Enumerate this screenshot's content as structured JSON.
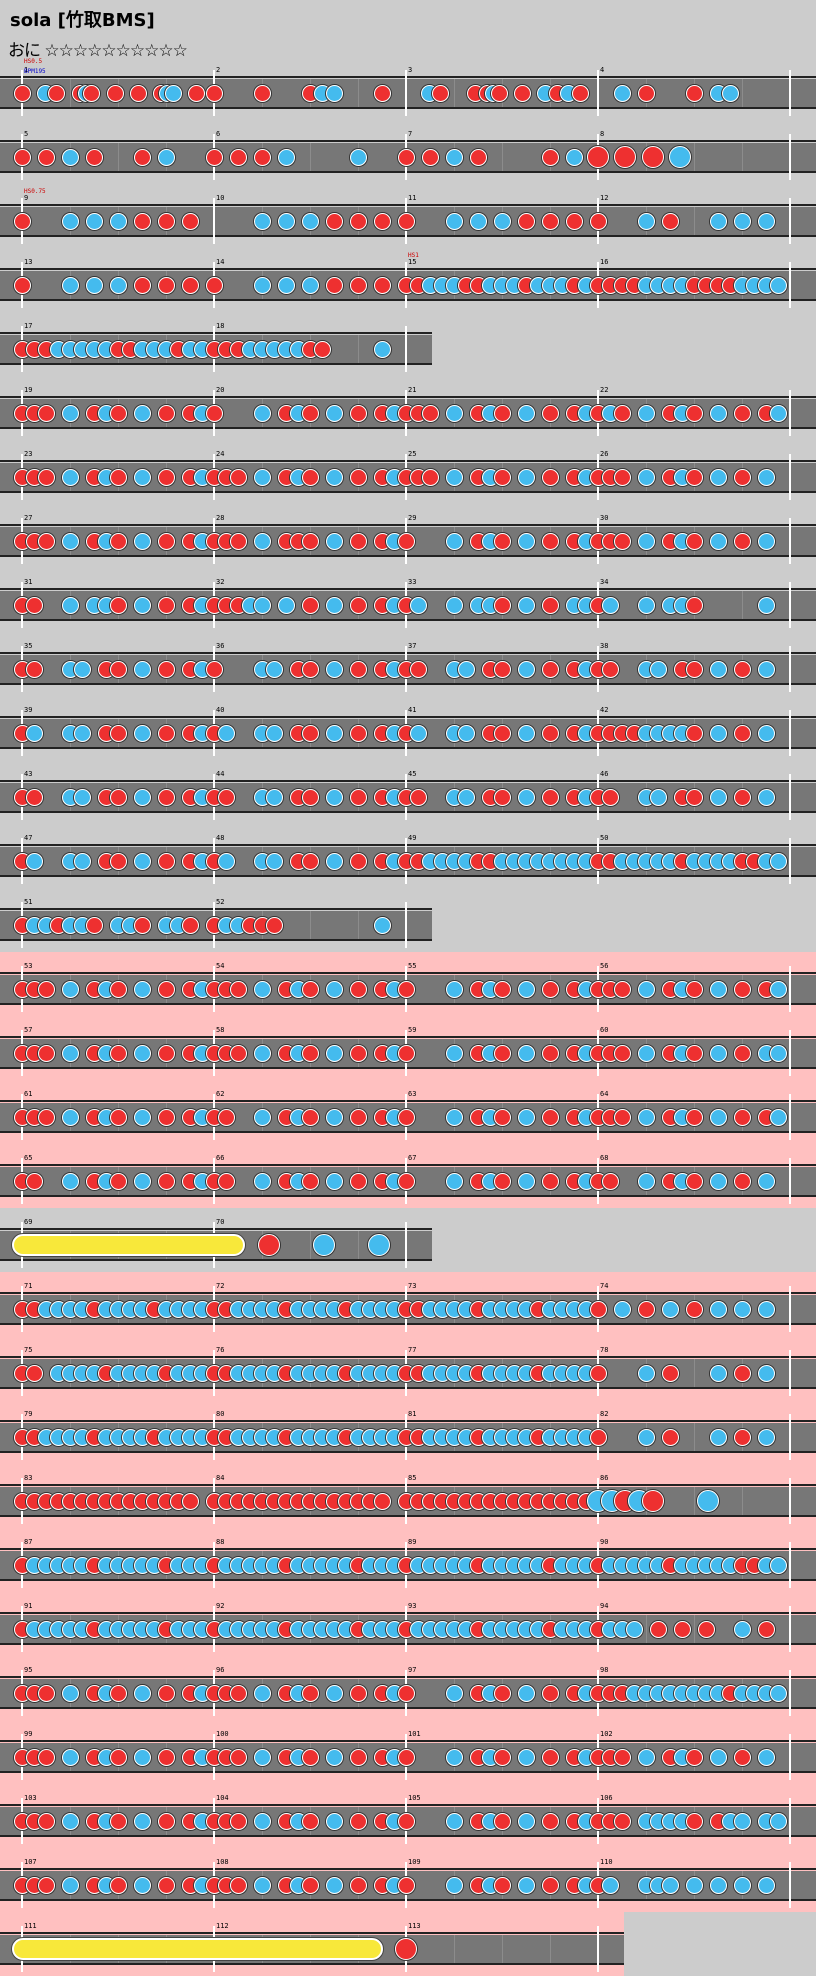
{
  "chart": {
    "title": "sola [竹取BMS]",
    "difficulty": "おに ☆☆☆☆☆☆☆☆☆☆",
    "colors": {
      "don": "#ee3030",
      "ka": "#44bbee",
      "roll": "#f8e83a",
      "gogo": "#ffc0c0",
      "lane": "#777777",
      "background": "#cccccc"
    },
    "annotations": [
      {
        "row": 0,
        "text": "HS0.5",
        "color": "#cc0000"
      },
      {
        "row": 0,
        "text": "BPM195",
        "color": "#0000cc"
      },
      {
        "row": 2,
        "text": "HS0.75",
        "color": "#cc0000"
      },
      {
        "row": 3,
        "measure_index": 2,
        "text": "HS1",
        "color": "#cc0000"
      }
    ]
  },
  "rows": [
    {
      "measures": [
        {
          "n": "1",
          "notes": "d...k.d...dkd...|d...d...dkk...d.|"
        },
        {
          "n": "2",
          "notes": "d...d...dkk...d.|"
        },
        {
          "n": "3",
          "notes": "....k.d.....d.dk|d...d...k.d.k.d.|"
        },
        {
          "n": "4",
          "notes": "..k.d...d.kk....|"
        }
      ]
    },
    {
      "measures": [
        {
          "n": "5",
          "notes": "d.d.k.d...d.k...|"
        },
        {
          "n": "6",
          "notes": "d.d.d.k.....k...|"
        },
        {
          "n": "7",
          "notes": "d.d.k.d.....d.k.|"
        },
        {
          "n": "8",
          "notes": "L:d.d.d.k.......|"
        }
      ]
    },
    {
      "measures": [
        {
          "n": "9",
          "notes": "d...k.k.k.d.d.d.|"
        },
        {
          "n": "10",
          "notes": "....k.k.k.d.d.d.|"
        },
        {
          "n": "11",
          "notes": "d...k.k.k.d.d.d.|"
        },
        {
          "n": "12",
          "notes": "d...k.d...k.k.k.|"
        }
      ]
    },
    {
      "measures": [
        {
          "n": "13",
          "notes": "d...k.k.k.d.d.d.|"
        },
        {
          "n": "14",
          "notes": "d...k.k.k.d.d.d.|"
        },
        {
          "n": "15",
          "notes": "ddkkkddkkkdkkkdk|"
        },
        {
          "n": "16",
          "notes": "ddddkkkkddddkkkk|"
        }
      ]
    },
    {
      "short": true,
      "measures": [
        {
          "n": "17",
          "notes": "dddkkkkkddkkkdkk|"
        },
        {
          "n": "18",
          "notes": "dddkkkkkdd..L:k.|"
        }
      ]
    },
    {
      "measures": [
        {
          "n": "19",
          "notes": "ddd.k.dkd.k.d.dk|"
        },
        {
          "n": "20",
          "notes": "d...k.dkd.k.d.dk|"
        },
        {
          "n": "21",
          "notes": "ddd.k.dkd.k.d.dk|"
        },
        {
          "n": "22",
          "notes": "dkd.k.dkd.k.d.dk|"
        }
      ]
    },
    {
      "measures": [
        {
          "n": "23",
          "notes": "ddd.k.dkd.k.d.dk|"
        },
        {
          "n": "24",
          "notes": "ddd.k.dkd.k.d.dk|"
        },
        {
          "n": "25",
          "notes": "ddd.k.dkd.k.d.dk|"
        },
        {
          "n": "26",
          "notes": "ddd.k.dkd.k.d.k.|"
        }
      ]
    },
    {
      "measures": [
        {
          "n": "27",
          "notes": "ddd.k.dkd.k.d.dk|"
        },
        {
          "n": "28",
          "notes": "ddd.k.ddd.k.d.dk|"
        },
        {
          "n": "29",
          "notes": "d...k.dkd.k.d.dk|"
        },
        {
          "n": "30",
          "notes": "ddd.k.dkd.k.d.k.|"
        }
      ]
    },
    {
      "measures": [
        {
          "n": "31",
          "notes": "dd..k.kkd.k.d.dk|"
        },
        {
          "n": "32",
          "notes": "dddkk.k.d.k.d.dk|"
        },
        {
          "n": "33",
          "notes": "dk..k.kkd.k.d.kk|"
        },
        {
          "n": "34",
          "notes": "dk..k.kkd.....k.|"
        }
      ]
    },
    {
      "measures": [
        {
          "n": "35",
          "notes": "dd..kk.dd.k.d.dk|"
        },
        {
          "n": "36",
          "notes": "d...kk.dd.k.d.dk|"
        },
        {
          "n": "37",
          "notes": "dd..kk.dd.k.d.dk|"
        },
        {
          "n": "38",
          "notes": "dd..kk.dd.k.d.k.|"
        }
      ]
    },
    {
      "measures": [
        {
          "n": "39",
          "notes": "dk..kk.dd.k.d.dk|"
        },
        {
          "n": "40",
          "notes": "dk..kk.dd.k.d.dk|"
        },
        {
          "n": "41",
          "notes": "dk..kk.dd.k.d.dk|"
        },
        {
          "n": "42",
          "notes": "ddddkkkkd.k.d.k.|"
        }
      ]
    },
    {
      "measures": [
        {
          "n": "43",
          "notes": "dd..kk.dd.k.d.dk|"
        },
        {
          "n": "44",
          "notes": "dd..kk.dd.k.d.dk|"
        },
        {
          "n": "45",
          "notes": "dd..kk.dd.k.d.dk|"
        },
        {
          "n": "46",
          "notes": "dd..kk.dd.k.d.k.|"
        }
      ]
    },
    {
      "measures": [
        {
          "n": "47",
          "notes": "dk..kk.dd.k.d.dk|"
        },
        {
          "n": "48",
          "notes": "dk..kk.dd.k.d.dk|"
        },
        {
          "n": "49",
          "notes": "ddkkkkddkkkkkkkk|"
        },
        {
          "n": "50",
          "notes": "ddkkkkkdkkkkddkk|"
        }
      ]
    },
    {
      "short": true,
      "measures": [
        {
          "n": "51",
          "notes": "dkkdkkd.kkd.kkd.|"
        },
        {
          "n": "52",
          "notes": "dkkddd......L:k.|"
        }
      ]
    },
    {
      "gogo": true,
      "measures": [
        {
          "n": "53",
          "notes": "ddd.k.dkd.k.d.dk|"
        },
        {
          "n": "54",
          "notes": "ddd.k.dkd.k.d.dk|"
        },
        {
          "n": "55",
          "notes": "d...k.dkd.k.d.dk|"
        },
        {
          "n": "56",
          "notes": "ddd.k.dkd.k.d.dk|"
        }
      ]
    },
    {
      "gogo": true,
      "measures": [
        {
          "n": "57",
          "notes": "ddd.k.dkd.k.d.dk|"
        },
        {
          "n": "58",
          "notes": "ddd.k.dkd.k.d.dk|"
        },
        {
          "n": "59",
          "notes": "d...k.dkd.k.d.dk|"
        },
        {
          "n": "60",
          "notes": "ddd.k.dkd.k.d.kk|"
        }
      ]
    },
    {
      "gogo": true,
      "measures": [
        {
          "n": "61",
          "notes": "ddd.k.dkd.k.d.dk|"
        },
        {
          "n": "62",
          "notes": "dd..k.dkd.k.d.dk|"
        },
        {
          "n": "63",
          "notes": "d...k.dkd.k.d.dk|"
        },
        {
          "n": "64",
          "notes": "ddd.k.dkd.k.d.dk|"
        }
      ]
    },
    {
      "gogo": true,
      "measures": [
        {
          "n": "65",
          "notes": "dd..k.dkd.k.d.dk|"
        },
        {
          "n": "66",
          "notes": "dd..k.dkd.k.d.dk|"
        },
        {
          "n": "67",
          "notes": "d...k.dkd.k.d.dk|"
        },
        {
          "n": "68",
          "notes": "dd..k.dkd.k.d.k.|"
        }
      ]
    },
    {
      "short": true,
      "roll": [
        0,
        0.58
      ],
      "measures": [
        {
          "n": "69",
          "notes": "................|"
        },
        {
          "n": "70",
          "notes": "L:....d...k...k.|"
        }
      ]
    },
    {
      "gogo": true,
      "measures": [
        {
          "n": "71",
          "notes": "ddkkkkdkkkkdkkkk|"
        },
        {
          "n": "72",
          "notes": "ddkkkkdkkkkdkkkk|"
        },
        {
          "n": "73",
          "notes": "ddkkkkdkkkkdkkkk|"
        },
        {
          "n": "74",
          "notes": "d.k.d.k.d.k.k.k.|"
        }
      ]
    },
    {
      "gogo": true,
      "measures": [
        {
          "n": "75",
          "notes": "dd.kkkkdkkkkdkkk|"
        },
        {
          "n": "76",
          "notes": "ddkkkkdkkkkdkkkk|"
        },
        {
          "n": "77",
          "notes": "ddkkkkdkkkkdkkkk|"
        },
        {
          "n": "78",
          "notes": "d...k.d...k.d.k.|"
        }
      ]
    },
    {
      "gogo": true,
      "measures": [
        {
          "n": "79",
          "notes": "ddkkkkdkkkkdkkkk|"
        },
        {
          "n": "80",
          "notes": "ddkkkkdkkkkdkkkk|"
        },
        {
          "n": "81",
          "notes": "ddkkkkdkkkkdkkkk|"
        },
        {
          "n": "82",
          "notes": "d...k.d...k.d.k.|"
        }
      ]
    },
    {
      "gogo": true,
      "measures": [
        {
          "n": "83",
          "notes": "ddddddddddddddd.|"
        },
        {
          "n": "84",
          "notes": "ddddddddddddddd.|"
        },
        {
          "n": "85",
          "notes": "dddddddddddddddd|"
        },
        {
          "n": "86",
          "notes": "L:kkdkd...k.....|"
        }
      ]
    },
    {
      "gogo": true,
      "measures": [
        {
          "n": "87",
          "notes": "dkkkkkdkkkkkdkkk|"
        },
        {
          "n": "88",
          "notes": "dkkkkkdkkkkkdkkk|"
        },
        {
          "n": "89",
          "notes": "dkkkkkdkkkkkdkkk|"
        },
        {
          "n": "90",
          "notes": "dkkkkkdkkkkkddkk|"
        }
      ]
    },
    {
      "gogo": true,
      "measures": [
        {
          "n": "91",
          "notes": "dkkkkkdkkkkkdkkk|"
        },
        {
          "n": "92",
          "notes": "dkkkkkdkkkkkdkkk|"
        },
        {
          "n": "93",
          "notes": "dkkkkkdkkkkkdkkk|"
        },
        {
          "n": "94",
          "notes": "dkkk.d.d.d..k.d.|"
        }
      ]
    },
    {
      "gogo": true,
      "measures": [
        {
          "n": "95",
          "notes": "ddd.k.dkd.k.d.dk|"
        },
        {
          "n": "96",
          "notes": "ddd.k.dkd.k.d.dk|"
        },
        {
          "n": "97",
          "notes": "d...k.dkd.k.d.dk|"
        },
        {
          "n": "98",
          "notes": "dddkkkkkkkkdkkkk|"
        }
      ]
    },
    {
      "gogo": true,
      "measures": [
        {
          "n": "99",
          "notes": "ddd.k.dkd.k.d.dk|"
        },
        {
          "n": "100",
          "notes": "ddd.k.dkd.k.d.dk|"
        },
        {
          "n": "101",
          "notes": "d...k.dkd.k.d.dk|"
        },
        {
          "n": "102",
          "notes": "ddd.k.dkd.k.d.k.|"
        }
      ]
    },
    {
      "gogo": true,
      "measures": [
        {
          "n": "103",
          "notes": "ddd.k.dkd.k.d.dk|"
        },
        {
          "n": "104",
          "notes": "ddd.k.dkd.k.d.dk|"
        },
        {
          "n": "105",
          "notes": "d...k.dkd.k.d.dk|"
        },
        {
          "n": "106",
          "notes": "ddd.kkkkd.dkk.kk|"
        }
      ]
    },
    {
      "gogo": true,
      "measures": [
        {
          "n": "107",
          "notes": "ddd.k.dkd.k.d.dk|"
        },
        {
          "n": "108",
          "notes": "ddd.k.dkd.k.d.dk|"
        },
        {
          "n": "109",
          "notes": "d...k.dkd.k.d.dk|"
        },
        {
          "n": "110",
          "notes": "dk..kkk.k.k.k.k.|"
        }
      ]
    },
    {
      "gogo": true,
      "short3": true,
      "roll": [
        0,
        0.94
      ],
      "measures": [
        {
          "n": "111",
          "notes": "................|"
        },
        {
          "n": "112",
          "notes": "................|"
        },
        {
          "n": "113",
          "notes": "L:d.............|"
        }
      ]
    }
  ]
}
